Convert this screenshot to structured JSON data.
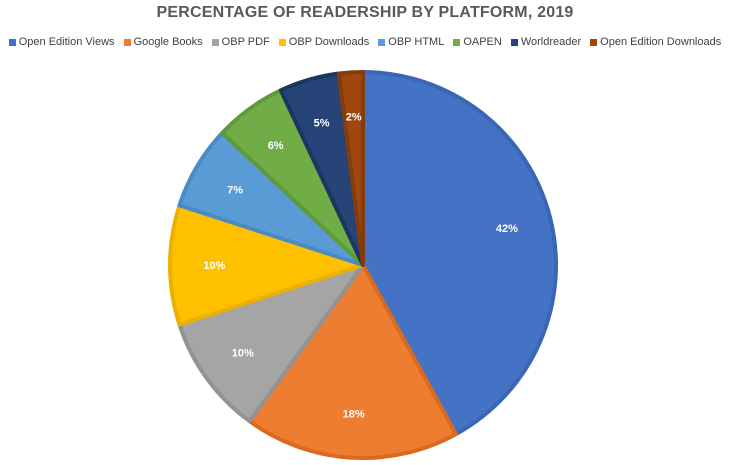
{
  "chart_data": {
    "type": "pie",
    "title": "PERCENTAGE OF READERSHIP BY PLATFORM, 2019",
    "legend_position": "top",
    "categories": [
      "Open Edition Views",
      "Google Books",
      "OBP PDF",
      "OBP Downloads",
      "OBP HTML",
      "OAPEN",
      "Worldreader",
      "Open Edition Downloads"
    ],
    "values": [
      42,
      18,
      10,
      10,
      7,
      6,
      5,
      2
    ],
    "data_labels": [
      "42%",
      "18%",
      "10%",
      "10%",
      "7%",
      "6%",
      "5%",
      "2%"
    ],
    "colors": [
      "#4472C4",
      "#ED7D31",
      "#A5A5A5",
      "#FFC000",
      "#5B9BD5",
      "#70AD47",
      "#264478",
      "#9E480E"
    ],
    "border_colors": [
      "#3A66B4",
      "#D96A20",
      "#939393",
      "#EBB000",
      "#4A8AC6",
      "#5F9A3A",
      "#1C3660",
      "#863B0A"
    ]
  }
}
